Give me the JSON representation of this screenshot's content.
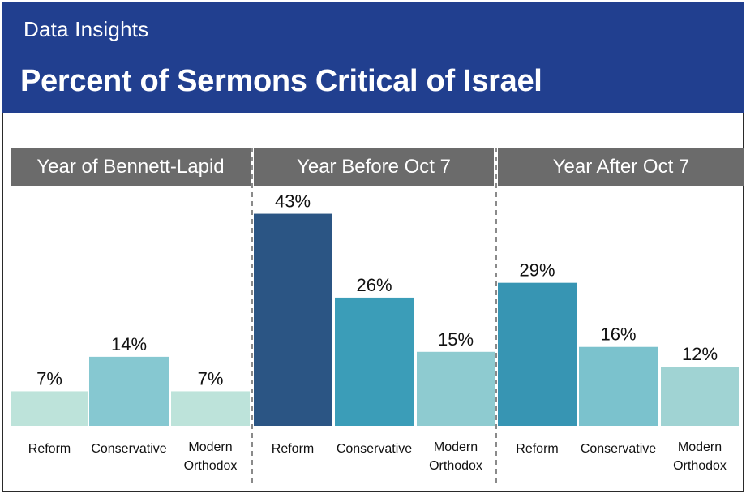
{
  "header": {
    "kicker": "Data Insights",
    "title": "Percent of Sermons Critical of Israel",
    "color": "#213f8f"
  },
  "chart_data": {
    "type": "bar",
    "title": "Percent of Sermons Critical of Israel",
    "xlabel": "",
    "ylabel": "",
    "ylim": [
      0,
      50
    ],
    "grid": false,
    "legend": "none",
    "panels": [
      {
        "title": "Year of Bennett-Lapid",
        "categories": [
          [
            "Reform"
          ],
          [
            "Conservative"
          ],
          [
            "Modern",
            "Orthodox"
          ]
        ],
        "values": [
          7,
          14,
          7
        ],
        "labels": [
          "7%",
          "14%",
          "7%"
        ],
        "colors": [
          "#bde3da",
          "#86c8d1",
          "#bde3da"
        ]
      },
      {
        "title": "Year Before Oct 7",
        "categories": [
          [
            "Reform"
          ],
          [
            "Conservative"
          ],
          [
            "Modern",
            "Orthodox"
          ]
        ],
        "values": [
          43,
          26,
          15
        ],
        "labels": [
          "43%",
          "26%",
          "15%"
        ],
        "colors": [
          "#2b5584",
          "#3b9db8",
          "#8ecbd0"
        ]
      },
      {
        "title": "Year After Oct 7",
        "categories": [
          [
            "Reform"
          ],
          [
            "Conservative"
          ],
          [
            "Modern",
            "Orthodox"
          ]
        ],
        "values": [
          29,
          16,
          12
        ],
        "labels": [
          "29%",
          "16%",
          "12%"
        ],
        "colors": [
          "#3795b3",
          "#7bc2cd",
          "#a0d3d3"
        ]
      }
    ],
    "panel_header_color": "#6b6b6b",
    "divider_color": "#8a8a8a"
  }
}
